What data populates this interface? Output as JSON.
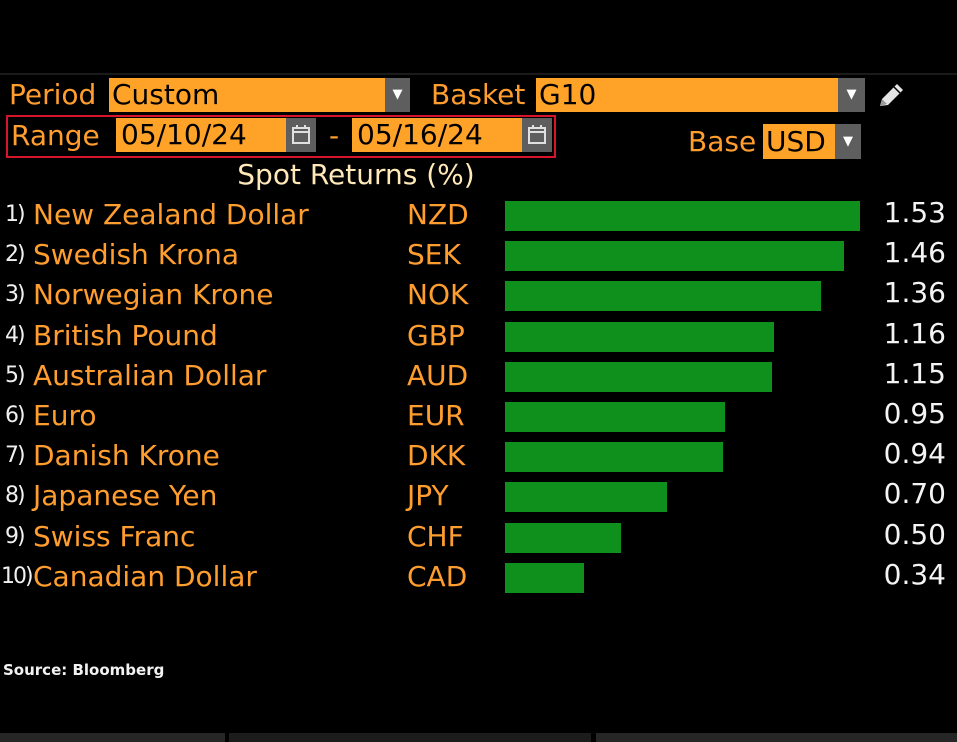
{
  "controls": {
    "period_label": "Period",
    "period_value": "Custom",
    "basket_label": "Basket",
    "basket_value": "G10",
    "range_label": "Range",
    "range_start": "05/10/24",
    "range_sep": "-",
    "range_end": "05/16/24",
    "base_label": "Base",
    "base_value": "USD"
  },
  "chart_data": {
    "type": "bar",
    "orientation": "horizontal",
    "title": "Spot Returns (%)",
    "rows": [
      {
        "num": "1)",
        "name": "New Zealand Dollar",
        "code": "NZD",
        "value": 1.53,
        "label": "1.53"
      },
      {
        "num": "2)",
        "name": "Swedish Krona",
        "code": "SEK",
        "value": 1.46,
        "label": "1.46"
      },
      {
        "num": "3)",
        "name": "Norwegian Krone",
        "code": "NOK",
        "value": 1.36,
        "label": "1.36"
      },
      {
        "num": "4)",
        "name": "British Pound",
        "code": "GBP",
        "value": 1.16,
        "label": "1.16"
      },
      {
        "num": "5)",
        "name": "Australian Dollar",
        "code": "AUD",
        "value": 1.15,
        "label": "1.15"
      },
      {
        "num": "6)",
        "name": "Euro",
        "code": "EUR",
        "value": 0.95,
        "label": "0.95"
      },
      {
        "num": "7)",
        "name": "Danish Krone",
        "code": "DKK",
        "value": 0.94,
        "label": "0.94"
      },
      {
        "num": "8)",
        "name": "Japanese Yen",
        "code": "JPY",
        "value": 0.7,
        "label": "0.70"
      },
      {
        "num": "9)",
        "name": "Swiss Franc",
        "code": "CHF",
        "value": 0.5,
        "label": "0.50"
      },
      {
        "num": "10)",
        "name": "Canadian Dollar",
        "code": "CAD",
        "value": 0.34,
        "label": "0.34"
      }
    ],
    "xlim": [
      0,
      1.53
    ],
    "bar_color": "#0f8f1c"
  },
  "footer": {
    "source": "Source: Bloomberg"
  },
  "icons": {
    "edit": "pencil-icon",
    "calendar": "calendar-icon",
    "dropdown": "chevron-down-icon"
  }
}
